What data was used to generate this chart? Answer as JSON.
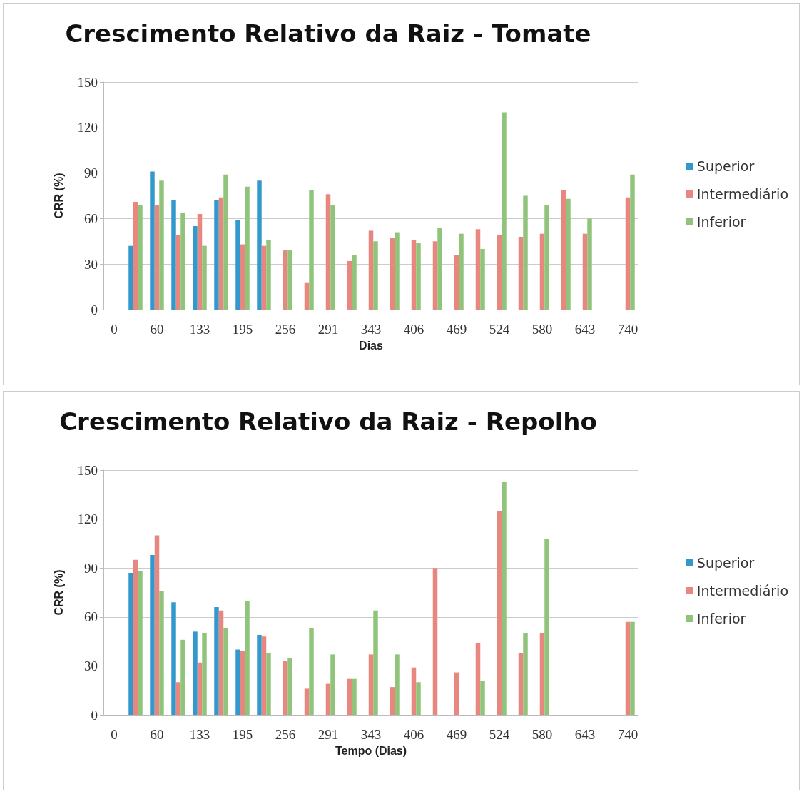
{
  "chart_data": [
    {
      "type": "bar",
      "title": "Crescimento Relativo da Raiz - Tomate",
      "xlabel": "Dias",
      "ylabel": "CRR (%)",
      "categories": [
        "0",
        null,
        "60",
        null,
        "133",
        null,
        "195",
        null,
        "256",
        null,
        "291",
        null,
        "343",
        null,
        "406",
        null,
        "469",
        null,
        "524",
        null,
        "580",
        null,
        "643",
        null,
        "740"
      ],
      "series": [
        {
          "name": "Superior",
          "color": "#3399cc",
          "values": [
            null,
            42,
            91,
            72,
            55,
            72,
            59,
            85,
            null,
            null,
            null,
            null,
            null,
            null,
            null,
            null,
            null,
            null,
            null,
            null,
            null,
            null,
            null,
            null,
            null
          ]
        },
        {
          "name": "Intermediário",
          "color": "#e8877f",
          "values": [
            null,
            71,
            69,
            49,
            63,
            74,
            43,
            42,
            39,
            18,
            76,
            32,
            52,
            47,
            46,
            45,
            36,
            53,
            49,
            48,
            50,
            79,
            50,
            null,
            74
          ]
        },
        {
          "name": "Inferior",
          "color": "#8fc47a",
          "values": [
            null,
            69,
            85,
            64,
            42,
            89,
            81,
            46,
            39,
            79,
            69,
            36,
            45,
            51,
            44,
            54,
            50,
            40,
            130,
            75,
            69,
            73,
            60,
            null,
            89
          ]
        }
      ],
      "ylim": [
        0,
        150
      ],
      "yticks": [
        0,
        30,
        60,
        90,
        120,
        150
      ],
      "grid": "y",
      "legend": "right"
    },
    {
      "type": "bar",
      "title": "Crescimento Relativo da Raiz - Repolho",
      "xlabel": "Tempo (Dias)",
      "ylabel": "CRR (%)",
      "categories": [
        "0",
        null,
        "60",
        null,
        "133",
        null,
        "195",
        null,
        "256",
        null,
        "291",
        null,
        "343",
        null,
        "406",
        null,
        "469",
        null,
        "524",
        null,
        "580",
        null,
        "643",
        null,
        "740"
      ],
      "series": [
        {
          "name": "Superior",
          "color": "#3399cc",
          "values": [
            null,
            87,
            98,
            69,
            51,
            66,
            40,
            49,
            null,
            null,
            null,
            null,
            null,
            null,
            null,
            null,
            null,
            null,
            null,
            null,
            null,
            null,
            null,
            null,
            null
          ]
        },
        {
          "name": "Intermediário",
          "color": "#e8877f",
          "values": [
            null,
            95,
            110,
            20,
            32,
            64,
            39,
            48,
            33,
            16,
            19,
            22,
            37,
            17,
            29,
            90,
            26,
            44,
            125,
            38,
            50,
            null,
            null,
            null,
            57
          ]
        },
        {
          "name": "Inferior",
          "color": "#8fc47a",
          "values": [
            null,
            88,
            76,
            46,
            50,
            53,
            70,
            38,
            35,
            53,
            37,
            22,
            64,
            37,
            20,
            null,
            null,
            21,
            143,
            50,
            108,
            null,
            null,
            null,
            57
          ]
        }
      ],
      "ylim": [
        0,
        150
      ],
      "yticks": [
        0,
        30,
        60,
        90,
        120,
        150
      ],
      "grid": "y",
      "legend": "right"
    }
  ]
}
